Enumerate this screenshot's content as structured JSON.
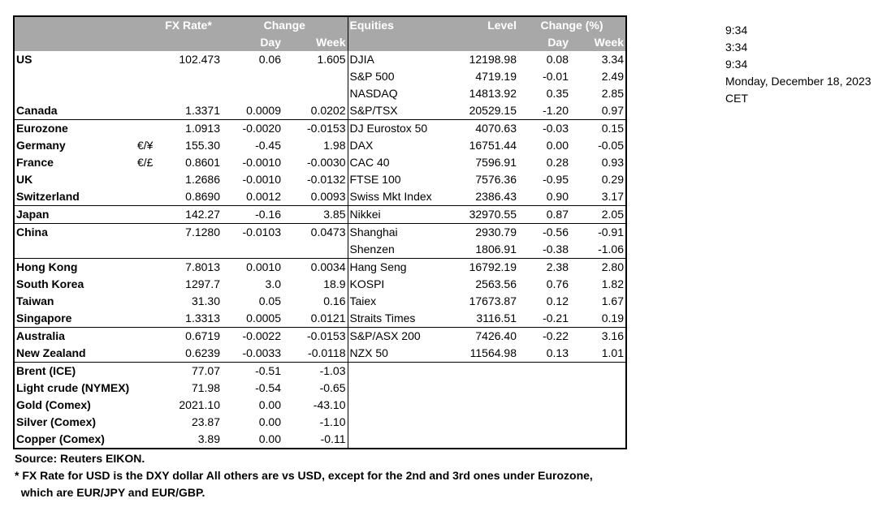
{
  "header": {
    "fx_rate": "FX Rate*",
    "change": "Change",
    "day": "Day",
    "week": "Week",
    "equities": "Equities",
    "level": "Level",
    "change_pct": "Change (%)",
    "eq_day": "Day",
    "eq_week": "Week"
  },
  "rows": [
    {
      "label": "US",
      "sym": "",
      "fx": "102.473",
      "fxd": "0.06",
      "fxw": "1.605",
      "eq": "DJIA",
      "lvl": "12198.98",
      "eqd": "0.08",
      "eqw": "3.34"
    },
    {
      "label": "",
      "sym": "",
      "fx": "",
      "fxd": "",
      "fxw": "",
      "eq": "S&P 500",
      "lvl": "4719.19",
      "eqd": "-0.01",
      "eqw": "2.49"
    },
    {
      "label": "",
      "sym": "",
      "fx": "",
      "fxd": "",
      "fxw": "",
      "eq": "NASDAQ",
      "lvl": "14813.92",
      "eqd": "0.35",
      "eqw": "2.85"
    },
    {
      "label": "Canada",
      "sym": "",
      "fx": "1.3371",
      "fxd": "0.0009",
      "fxw": "0.0202",
      "eq": "S&P/TSX",
      "lvl": "20529.15",
      "eqd": "-1.20",
      "eqw": "0.97"
    },
    {
      "label": "Eurozone",
      "sym": "",
      "fx": "1.0913",
      "fxd": "-0.0020",
      "fxw": "-0.0153",
      "eq": "DJ Eurostox 50",
      "lvl": "4070.63",
      "eqd": "-0.03",
      "eqw": "0.15"
    },
    {
      "label": "Germany",
      "sym": "€/¥",
      "fx": "155.30",
      "fxd": "-0.45",
      "fxw": "1.98",
      "eq": "DAX",
      "lvl": "16751.44",
      "eqd": "0.00",
      "eqw": "-0.05"
    },
    {
      "label": "France",
      "sym": "€/£",
      "fx": "0.8601",
      "fxd": "-0.0010",
      "fxw": "-0.0030",
      "eq": "CAC 40",
      "lvl": "7596.91",
      "eqd": "0.28",
      "eqw": "0.93"
    },
    {
      "label": "UK",
      "sym": "",
      "fx": "1.2686",
      "fxd": "-0.0010",
      "fxw": "-0.0132",
      "eq": "FTSE 100",
      "lvl": "7576.36",
      "eqd": "-0.95",
      "eqw": "0.29"
    },
    {
      "label": "Switzerland",
      "sym": "",
      "fx": "0.8690",
      "fxd": "0.0012",
      "fxw": "0.0093",
      "eq": "Swiss Mkt Index",
      "lvl": "2386.43",
      "eqd": "0.90",
      "eqw": "3.17"
    },
    {
      "label": "Japan",
      "sym": "",
      "fx": "142.27",
      "fxd": "-0.16",
      "fxw": "3.85",
      "eq": "Nikkei",
      "lvl": "32970.55",
      "eqd": "0.87",
      "eqw": "2.05"
    },
    {
      "label": "China",
      "sym": "",
      "fx": "7.1280",
      "fxd": "-0.0103",
      "fxw": "0.0473",
      "eq": "Shanghai",
      "lvl": "2930.79",
      "eqd": "-0.56",
      "eqw": "-0.91"
    },
    {
      "label": "",
      "sym": "",
      "fx": "",
      "fxd": "",
      "fxw": "",
      "eq": "Shenzen",
      "lvl": "1806.91",
      "eqd": "-0.38",
      "eqw": "-1.06"
    },
    {
      "label": "Hong Kong",
      "sym": "",
      "fx": "7.8013",
      "fxd": "0.0010",
      "fxw": "0.0034",
      "eq": "Hang Seng",
      "lvl": "16792.19",
      "eqd": "2.38",
      "eqw": "2.80"
    },
    {
      "label": "South Korea",
      "sym": "",
      "fx": "1297.7",
      "fxd": "3.0",
      "fxw": "18.9",
      "eq": "KOSPI",
      "lvl": "2563.56",
      "eqd": "0.76",
      "eqw": "1.82"
    },
    {
      "label": "Taiwan",
      "sym": "",
      "fx": "31.30",
      "fxd": "0.05",
      "fxw": "0.16",
      "eq": "Taiex",
      "lvl": "17673.87",
      "eqd": "0.12",
      "eqw": "1.67"
    },
    {
      "label": "Singapore",
      "sym": "",
      "fx": "1.3313",
      "fxd": "0.0005",
      "fxw": "0.0121",
      "eq": "Straits Times",
      "lvl": "3116.51",
      "eqd": "-0.21",
      "eqw": "0.19"
    },
    {
      "label": "Australia",
      "sym": "",
      "fx": "0.6719",
      "fxd": "-0.0022",
      "fxw": "-0.0153",
      "eq": "S&P/ASX  200",
      "lvl": "7426.40",
      "eqd": "-0.22",
      "eqw": "3.16"
    },
    {
      "label": "New Zealand",
      "sym": "",
      "fx": "0.6239",
      "fxd": "-0.0033",
      "fxw": "-0.0118",
      "eq": "NZX 50",
      "lvl": "11564.98",
      "eqd": "0.13",
      "eqw": "1.01"
    },
    {
      "label": "Brent (ICE)",
      "sym": "",
      "fx": "77.07",
      "fxd": "-0.51",
      "fxw": "-1.03",
      "eq": "",
      "lvl": "",
      "eqd": "",
      "eqw": ""
    },
    {
      "label": "Light crude (NYMEX)",
      "sym": "",
      "fx": "71.98",
      "fxd": "-0.54",
      "fxw": "-0.65",
      "eq": "",
      "lvl": "",
      "eqd": "",
      "eqw": ""
    },
    {
      "label": "Gold (Comex)",
      "sym": "",
      "fx": "2021.10",
      "fxd": "0.00",
      "fxw": "-43.10",
      "eq": "",
      "lvl": "",
      "eqd": "",
      "eqw": ""
    },
    {
      "label": "Silver (Comex)",
      "sym": "",
      "fx": "23.87",
      "fxd": "0.00",
      "fxw": "-1.10",
      "eq": "",
      "lvl": "",
      "eqd": "",
      "eqw": ""
    },
    {
      "label": "Copper (Comex)",
      "sym": "",
      "fx": "3.89",
      "fxd": "0.00",
      "fxw": "-0.11",
      "eq": "",
      "lvl": "",
      "eqd": "",
      "eqw": ""
    }
  ],
  "side": {
    "time1": "9:34",
    "time2": "3:34",
    "time3": "9:34",
    "date": "Monday, December 18, 2023",
    "tz": "CET"
  },
  "footer": {
    "source": "Source:  Reuters EIKON.",
    "note1": "* FX Rate for USD is the DXY dollar  All others are vs USD, except for the 2nd and 3rd ones under Eurozone,",
    "note2": "  which are EUR/JPY and EUR/GBP."
  }
}
